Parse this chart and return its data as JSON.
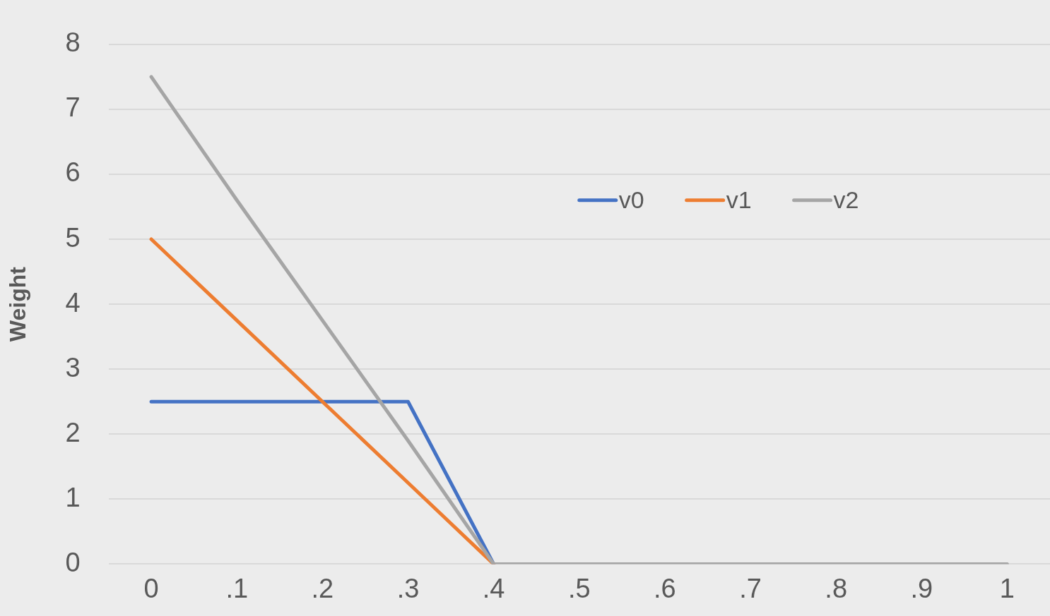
{
  "chart_data": {
    "type": "line",
    "ylabel": "Weight",
    "categories": [
      "0",
      ".1",
      ".2",
      ".3",
      ".4",
      ".5",
      ".6",
      ".7",
      ".8",
      ".9",
      "1"
    ],
    "series": [
      {
        "name": "v0",
        "color": "#4472c4",
        "values": [
          2.5,
          2.5,
          2.5,
          2.5,
          0,
          null,
          null,
          null,
          null,
          null,
          null
        ]
      },
      {
        "name": "v1",
        "color": "#ed7d31",
        "values": [
          5,
          3.75,
          2.5,
          1.25,
          0,
          null,
          null,
          null,
          null,
          null,
          null
        ]
      },
      {
        "name": "v2",
        "color": "#a5a5a5",
        "values": [
          7.5,
          5.6,
          3.75,
          1.9,
          0,
          0,
          0,
          0,
          0,
          0,
          0
        ]
      }
    ],
    "ylim": [
      0,
      8
    ],
    "yticks": [
      0,
      1,
      2,
      3,
      4,
      5,
      6,
      7,
      8
    ],
    "grid": "y",
    "legend": "top right",
    "marker": "none",
    "line_style": "solid"
  }
}
